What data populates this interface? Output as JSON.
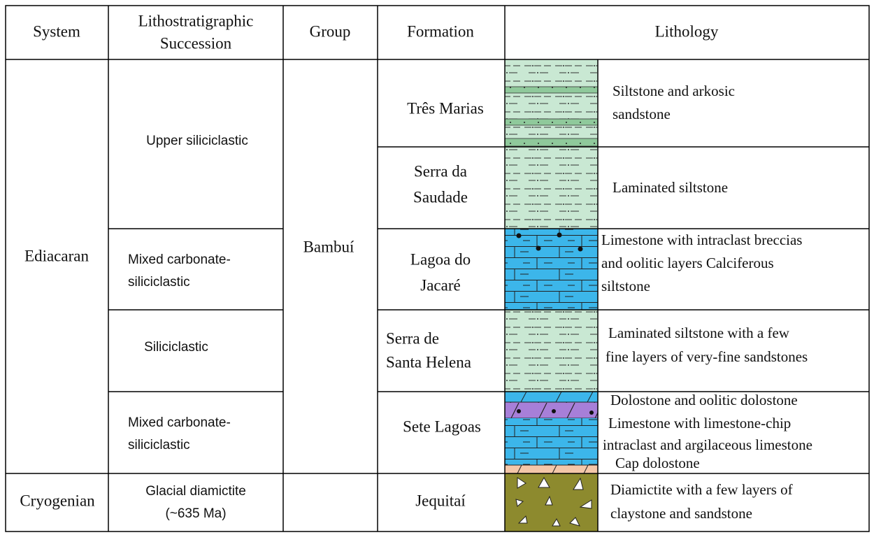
{
  "header": {
    "system": "System",
    "succession": [
      "Lithostratigraphic",
      "Succession"
    ],
    "group": "Group",
    "formation": "Formation",
    "lithology": "Lithology"
  },
  "systems": [
    "Ediacaran",
    "Cryogenian"
  ],
  "successions": [
    [
      "Upper siliciclastic"
    ],
    [
      "Mixed carbonate-",
      "siliciclastic"
    ],
    [
      "Siliciclastic"
    ],
    [
      "Mixed carbonate-",
      "siliciclastic"
    ],
    [
      "Glacial diamictite",
      "(~635 Ma)"
    ]
  ],
  "group": "Bambuí",
  "formations": [
    {
      "name": [
        "Três Marias"
      ],
      "lithology": [
        "Siltstone  and arkosic",
        "sandstone"
      ]
    },
    {
      "name": [
        "Serra da",
        "Saudade"
      ],
      "lithology": [
        "Laminated siltstone"
      ]
    },
    {
      "name": [
        "Lagoa do",
        "Jacaré"
      ],
      "lithology": [
        "Limestone with intraclast breccias",
        "and oolitic layers Calciferous",
        "siltstone"
      ]
    },
    {
      "name": [
        "Serra de",
        "Santa Helena"
      ],
      "lithology": [
        "Laminated siltstone with a few",
        "fine layers of very-fine sandstones"
      ]
    },
    {
      "name": [
        "Sete Lagoas"
      ],
      "lithology": [
        "Dolostone and oolitic dolostone",
        "Limestone with limestone-chip",
        "intraclast and argilaceous limestone",
        "Cap dolostone"
      ]
    },
    {
      "name": [
        "Jequitaí"
      ],
      "lithology": [
        "Diamictite with a  few layers of",
        "claystone and sandstone"
      ]
    }
  ]
}
